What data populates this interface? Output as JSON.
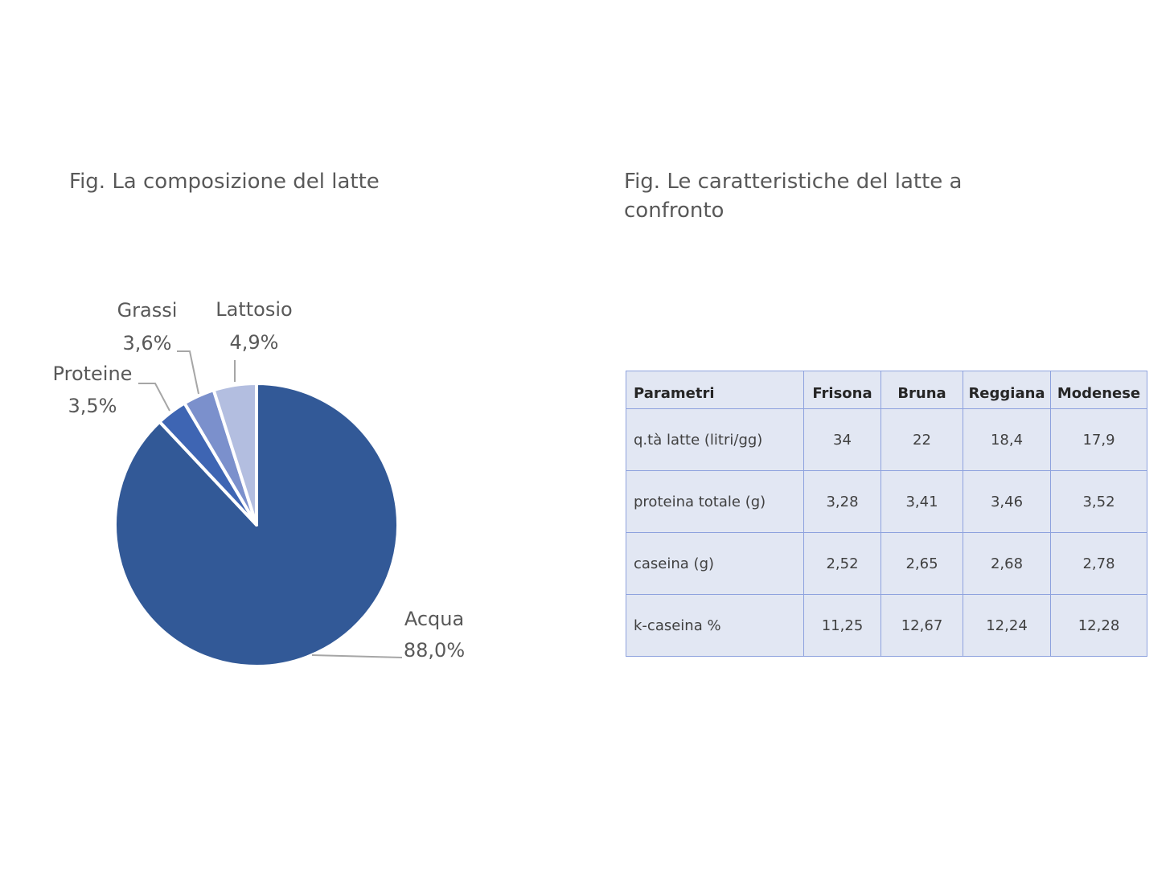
{
  "left_figure": {
    "title": "Fig. La composizione del latte"
  },
  "right_figure": {
    "title": "Fig. Le caratteristiche del latte a confronto"
  },
  "chart_data": [
    {
      "type": "pie",
      "title": "Fig. La composizione del latte",
      "start_angle_deg": 90,
      "direction": "clockwise",
      "slices": [
        {
          "label": "Acqua",
          "value": 88.0,
          "value_label": "88,0%",
          "color": "#325997"
        },
        {
          "label": "Proteine",
          "value": 3.5,
          "value_label": "3,5%",
          "color": "#3e65b3"
        },
        {
          "label": "Grassi",
          "value": 3.6,
          "value_label": "3,6%",
          "color": "#7b90cc"
        },
        {
          "label": "Lattosio",
          "value": 4.9,
          "value_label": "4,9%",
          "color": "#b3bee0"
        }
      ],
      "leader_line_color": "#a6a6a6",
      "slice_border_color": "#ffffff"
    },
    {
      "type": "table",
      "title": "Fig. Le caratteristiche del latte a confronto",
      "columns": [
        "Parametri",
        "Frisona",
        "Bruna",
        "Reggiana",
        "Modenese"
      ],
      "rows": [
        [
          "q.tà latte (litri/gg)",
          "34",
          "22",
          "18,4",
          "17,9"
        ],
        [
          "proteina totale (g)",
          "3,28",
          "3,41",
          "3,46",
          "3,52"
        ],
        [
          "caseina  (g)",
          "2,52",
          "2,65",
          "2,68",
          "2,78"
        ],
        [
          "k-caseina %",
          "11,25",
          "12,67",
          "12,24",
          "12,28"
        ]
      ],
      "header_background": "#e2e7f3",
      "border_color": "#8ea2de"
    }
  ]
}
